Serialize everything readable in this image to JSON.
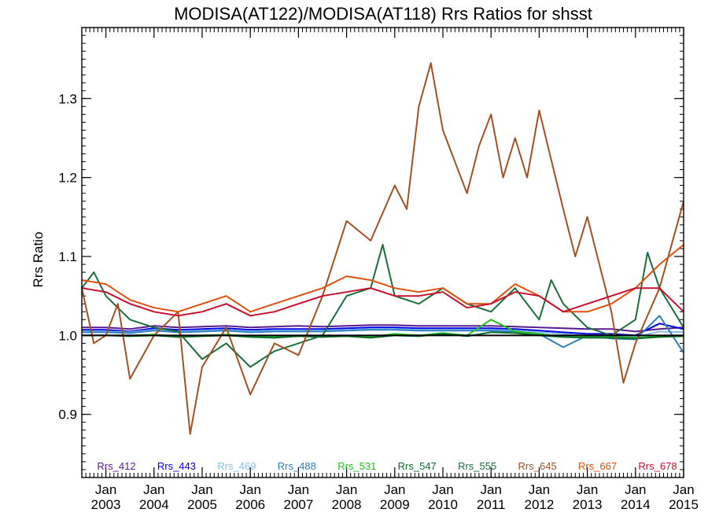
{
  "chart_data": {
    "type": "line",
    "title": "MODISA(AT122)/MODISA(AT118)  Rrs Ratios for shsst",
    "xlabel": "",
    "ylabel": "Rrs Ratio",
    "xlim": [
      "2002-07",
      "2015-01"
    ],
    "ylim": [
      0.82,
      1.39
    ],
    "yticks": [
      {
        "value": 0.9,
        "label": "0.9"
      },
      {
        "value": 1.0,
        "label": "1.0"
      },
      {
        "value": 1.1,
        "label": "1.1"
      },
      {
        "value": 1.2,
        "label": "1.2"
      },
      {
        "value": 1.3,
        "label": "1.3"
      }
    ],
    "xticks": [
      {
        "date": "2003-01",
        "top": "Jan",
        "bottom": "2003"
      },
      {
        "date": "2004-01",
        "top": "Jan",
        "bottom": "2004"
      },
      {
        "date": "2005-01",
        "top": "Jan",
        "bottom": "2005"
      },
      {
        "date": "2006-01",
        "top": "Jan",
        "bottom": "2006"
      },
      {
        "date": "2007-01",
        "top": "Jan",
        "bottom": "2007"
      },
      {
        "date": "2008-01",
        "top": "Jan",
        "bottom": "2008"
      },
      {
        "date": "2009-01",
        "top": "Jan",
        "bottom": "2009"
      },
      {
        "date": "2010-01",
        "top": "Jan",
        "bottom": "2010"
      },
      {
        "date": "2011-01",
        "top": "Jan",
        "bottom": "2011"
      },
      {
        "date": "2012-01",
        "top": "Jan",
        "bottom": "2012"
      },
      {
        "date": "2013-01",
        "top": "Jan",
        "bottom": "2013"
      },
      {
        "date": "2014-01",
        "top": "Jan",
        "bottom": "2014"
      },
      {
        "date": "2015-01",
        "top": "Jan",
        "bottom": "2015"
      }
    ],
    "reference_line": {
      "value": 1.0,
      "color": "#000000"
    },
    "legend_placement": "bottom",
    "grid": false,
    "series": [
      {
        "name": "Rrs_412",
        "color": "#5a1a91",
        "x": [
          "2002-07",
          "2003-01",
          "2003-07",
          "2004-01",
          "2004-07",
          "2005-01",
          "2005-07",
          "2006-01",
          "2006-07",
          "2007-01",
          "2007-07",
          "2008-01",
          "2008-07",
          "2009-01",
          "2009-07",
          "2010-01",
          "2010-07",
          "2011-01",
          "2011-07",
          "2012-01",
          "2012-07",
          "2013-01",
          "2013-07",
          "2014-01",
          "2014-07",
          "2015-01"
        ],
        "y": [
          1.01,
          1.01,
          1.008,
          1.012,
          1.01,
          1.011,
          1.012,
          1.01,
          1.011,
          1.012,
          1.011,
          1.012,
          1.013,
          1.013,
          1.012,
          1.012,
          1.012,
          1.012,
          1.011,
          1.01,
          1.009,
          1.008,
          1.008,
          1.005,
          1.008,
          1.01
        ]
      },
      {
        "name": "Rrs_443",
        "color": "#0000e6",
        "x": [
          "2002-07",
          "2003-01",
          "2003-07",
          "2004-01",
          "2004-07",
          "2005-01",
          "2005-07",
          "2006-01",
          "2006-07",
          "2007-01",
          "2007-07",
          "2008-01",
          "2008-07",
          "2009-01",
          "2009-07",
          "2010-01",
          "2010-07",
          "2011-01",
          "2011-07",
          "2012-01",
          "2012-07",
          "2013-01",
          "2013-07",
          "2014-01",
          "2014-07",
          "2015-01"
        ],
        "y": [
          1.007,
          1.007,
          1.005,
          1.009,
          1.007,
          1.008,
          1.009,
          1.007,
          1.008,
          1.008,
          1.008,
          1.009,
          1.01,
          1.01,
          1.009,
          1.009,
          1.009,
          1.009,
          1.008,
          1.006,
          1.004,
          1.002,
          1.002,
          1.0,
          1.015,
          1.008
        ]
      },
      {
        "name": "Rrs_469",
        "color": "#87bfe3",
        "x": [
          "2002-07",
          "2003-01",
          "2003-07",
          "2004-01",
          "2004-07",
          "2005-01",
          "2005-07",
          "2006-01",
          "2006-07",
          "2007-01",
          "2007-07",
          "2008-01",
          "2008-07",
          "2009-01",
          "2009-07",
          "2010-01",
          "2010-07",
          "2011-01",
          "2011-07",
          "2012-01",
          "2012-07",
          "2013-01",
          "2013-07",
          "2014-01",
          "2014-07",
          "2015-01"
        ],
        "y": [
          1.005,
          1.005,
          1.004,
          1.007,
          1.005,
          1.006,
          1.007,
          1.005,
          1.006,
          1.006,
          1.006,
          1.007,
          1.008,
          1.008,
          1.007,
          1.007,
          1.007,
          1.007,
          1.006,
          1.004,
          1.002,
          1.0,
          1.0,
          0.998,
          1.005,
          1.004
        ]
      },
      {
        "name": "Rrs_488",
        "color": "#2b7fc1",
        "x": [
          "2002-07",
          "2003-01",
          "2003-07",
          "2004-01",
          "2004-07",
          "2005-01",
          "2005-07",
          "2006-01",
          "2006-07",
          "2007-01",
          "2007-07",
          "2008-01",
          "2008-07",
          "2009-01",
          "2009-07",
          "2010-01",
          "2010-07",
          "2011-01",
          "2011-07",
          "2012-01",
          "2012-07",
          "2013-01",
          "2013-07",
          "2014-01",
          "2014-07",
          "2015-01"
        ],
        "y": [
          1.004,
          1.004,
          1.003,
          1.006,
          1.004,
          1.005,
          1.006,
          1.004,
          1.005,
          1.005,
          1.005,
          1.006,
          1.007,
          1.007,
          1.006,
          1.006,
          1.006,
          1.006,
          1.005,
          1.002,
          0.985,
          1.0,
          0.996,
          0.995,
          1.025,
          0.978
        ]
      },
      {
        "name": "Rrs_531",
        "color": "#22c022",
        "x": [
          "2002-07",
          "2003-01",
          "2003-07",
          "2004-01",
          "2004-07",
          "2005-01",
          "2005-07",
          "2006-01",
          "2006-07",
          "2007-01",
          "2007-07",
          "2008-01",
          "2008-07",
          "2009-01",
          "2009-07",
          "2010-01",
          "2010-07",
          "2011-01",
          "2011-07",
          "2012-01",
          "2012-07",
          "2013-01",
          "2013-07",
          "2014-01",
          "2014-07",
          "2015-01"
        ],
        "y": [
          1.0,
          1.0,
          1.0,
          1.001,
          0.999,
          1.0,
          1.001,
          0.999,
          0.998,
          1.0,
          0.999,
          1.0,
          0.998,
          1.002,
          1.0,
          1.003,
          1.0,
          1.02,
          1.005,
          1.002,
          0.998,
          0.998,
          0.998,
          0.997,
          0.999,
          1.0
        ]
      },
      {
        "name": "Rrs_547",
        "color": "#0a6e2a",
        "x": [
          "2002-07",
          "2003-01",
          "2003-07",
          "2004-01",
          "2004-07",
          "2005-01",
          "2005-07",
          "2006-01",
          "2006-07",
          "2007-01",
          "2007-07",
          "2008-01",
          "2008-07",
          "2009-01",
          "2009-07",
          "2010-01",
          "2010-07",
          "2011-01",
          "2011-07",
          "2012-01",
          "2012-07",
          "2013-01",
          "2013-07",
          "2014-01",
          "2014-07",
          "2015-01"
        ],
        "y": [
          1.0,
          1.0,
          0.999,
          1.0,
          0.998,
          0.999,
          1.0,
          0.998,
          0.997,
          0.999,
          0.998,
          0.999,
          0.997,
          1.0,
          0.999,
          1.002,
          0.999,
          1.004,
          1.003,
          1.0,
          0.998,
          0.997,
          0.997,
          0.996,
          0.998,
          0.999
        ]
      },
      {
        "name": "Rrs_555",
        "color": "#1a6e3a",
        "x": [
          "2002-07",
          "2002-10",
          "2003-01",
          "2003-07",
          "2004-01",
          "2004-07",
          "2005-01",
          "2005-07",
          "2006-01",
          "2006-07",
          "2007-01",
          "2007-07",
          "2008-01",
          "2008-07",
          "2008-10",
          "2009-01",
          "2009-07",
          "2010-01",
          "2010-07",
          "2011-01",
          "2011-07",
          "2012-01",
          "2012-04",
          "2012-07",
          "2013-01",
          "2013-07",
          "2014-01",
          "2014-04",
          "2014-07",
          "2015-01"
        ],
        "y": [
          1.06,
          1.08,
          1.05,
          1.02,
          1.01,
          1.005,
          0.97,
          0.99,
          0.96,
          0.98,
          0.99,
          1.0,
          1.05,
          1.06,
          1.115,
          1.05,
          1.04,
          1.06,
          1.04,
          1.03,
          1.06,
          1.02,
          1.07,
          1.04,
          1.01,
          1.0,
          1.02,
          1.105,
          1.06,
          1.01
        ]
      },
      {
        "name": "Rrs_645",
        "color": "#a35023",
        "x": [
          "2002-07",
          "2002-10",
          "2003-01",
          "2003-04",
          "2003-07",
          "2004-01",
          "2004-07",
          "2004-10",
          "2005-01",
          "2005-07",
          "2006-01",
          "2006-07",
          "2007-01",
          "2007-07",
          "2008-01",
          "2008-07",
          "2009-01",
          "2009-04",
          "2009-07",
          "2009-10",
          "2010-01",
          "2010-07",
          "2010-10",
          "2011-01",
          "2011-04",
          "2011-07",
          "2011-10",
          "2012-01",
          "2012-07",
          "2012-10",
          "2013-01",
          "2013-07",
          "2013-10",
          "2014-01",
          "2014-07",
          "2015-01"
        ],
        "y": [
          1.06,
          0.99,
          1.0,
          1.04,
          0.945,
          1.0,
          1.03,
          0.875,
          0.96,
          1.01,
          0.925,
          0.99,
          0.975,
          1.05,
          1.145,
          1.12,
          1.19,
          1.16,
          1.29,
          1.345,
          1.26,
          1.18,
          1.24,
          1.28,
          1.2,
          1.25,
          1.2,
          1.285,
          1.16,
          1.1,
          1.15,
          1.03,
          0.94,
          0.99,
          1.06,
          1.17
        ]
      },
      {
        "name": "Rrs_667",
        "color": "#e0500e",
        "x": [
          "2002-07",
          "2003-01",
          "2003-07",
          "2004-01",
          "2004-07",
          "2005-01",
          "2005-07",
          "2006-01",
          "2006-07",
          "2007-01",
          "2007-07",
          "2008-01",
          "2008-07",
          "2009-01",
          "2009-07",
          "2010-01",
          "2010-07",
          "2011-01",
          "2011-07",
          "2012-01",
          "2012-07",
          "2013-01",
          "2013-07",
          "2014-01",
          "2014-07",
          "2015-01"
        ],
        "y": [
          1.07,
          1.065,
          1.045,
          1.035,
          1.03,
          1.04,
          1.05,
          1.03,
          1.04,
          1.05,
          1.06,
          1.075,
          1.07,
          1.06,
          1.055,
          1.06,
          1.04,
          1.04,
          1.065,
          1.05,
          1.03,
          1.03,
          1.04,
          1.06,
          1.09,
          1.115
        ]
      },
      {
        "name": "Rrs_678",
        "color": "#c8102e",
        "x": [
          "2002-07",
          "2003-01",
          "2003-07",
          "2004-01",
          "2004-07",
          "2005-01",
          "2005-07",
          "2006-01",
          "2006-07",
          "2007-01",
          "2007-07",
          "2008-01",
          "2008-07",
          "2009-01",
          "2009-07",
          "2010-01",
          "2010-07",
          "2011-01",
          "2011-07",
          "2012-01",
          "2012-07",
          "2013-01",
          "2013-07",
          "2014-01",
          "2014-07",
          "2015-01"
        ],
        "y": [
          1.06,
          1.055,
          1.04,
          1.03,
          1.025,
          1.03,
          1.04,
          1.025,
          1.03,
          1.04,
          1.05,
          1.055,
          1.06,
          1.05,
          1.05,
          1.055,
          1.035,
          1.04,
          1.055,
          1.05,
          1.03,
          1.04,
          1.05,
          1.06,
          1.06,
          1.03
        ]
      }
    ]
  }
}
